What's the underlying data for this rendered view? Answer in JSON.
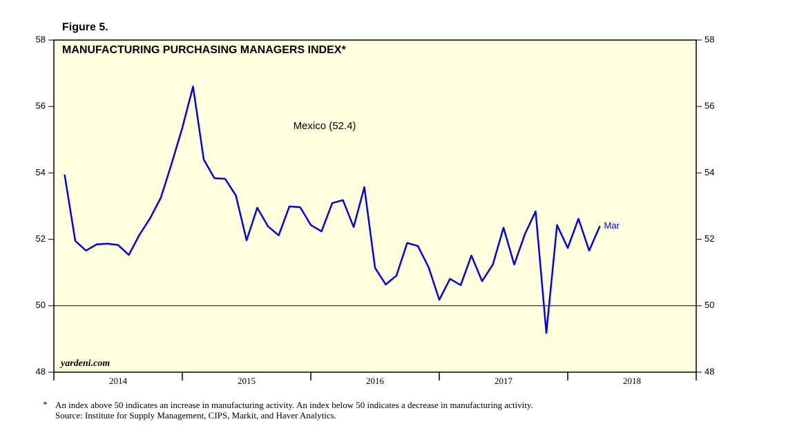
{
  "chart_data": {
    "type": "line",
    "figure_label": "Figure 5.",
    "title": "MANUFACTURING PURCHASING MANAGERS INDEX*",
    "source_mark": "yardeni.com",
    "footnote": "*",
    "footnote_lines": [
      "An index above 50 indicates an increase in manufacturing activity. An index below 50 indicates a decrease in manufacturing activity.",
      "Source: Institute for Supply Management, CIPS, Markit, and Haver Analytics."
    ],
    "x": [
      "2014-01",
      "2014-02",
      "2014-03",
      "2014-04",
      "2014-05",
      "2014-06",
      "2014-07",
      "2014-08",
      "2014-09",
      "2014-10",
      "2014-11",
      "2014-12",
      "2015-01",
      "2015-02",
      "2015-03",
      "2015-04",
      "2015-05",
      "2015-06",
      "2015-07",
      "2015-08",
      "2015-09",
      "2015-10",
      "2015-11",
      "2015-12",
      "2016-01",
      "2016-02",
      "2016-03",
      "2016-04",
      "2016-05",
      "2016-06",
      "2016-07",
      "2016-08",
      "2016-09",
      "2016-10",
      "2016-11",
      "2016-12",
      "2017-01",
      "2017-02",
      "2017-03",
      "2017-04",
      "2017-05",
      "2017-06",
      "2017-07",
      "2017-08",
      "2017-09",
      "2017-10",
      "2017-11",
      "2017-12",
      "2018-01",
      "2018-02",
      "2018-03"
    ],
    "series": [
      {
        "name": "Mexico (52.4)",
        "color": "#0000ee",
        "end_label": "Mar",
        "values": [
          53.95,
          51.95,
          51.66,
          51.85,
          51.87,
          51.83,
          51.53,
          52.14,
          52.64,
          53.26,
          54.28,
          55.36,
          56.6,
          54.4,
          53.84,
          53.82,
          53.32,
          51.97,
          52.95,
          52.39,
          52.12,
          52.99,
          52.97,
          52.43,
          52.24,
          53.09,
          53.18,
          52.37,
          53.57,
          51.14,
          50.64,
          50.91,
          51.89,
          51.8,
          51.16,
          50.18,
          50.81,
          50.62,
          51.51,
          50.74,
          51.24,
          52.35,
          51.24,
          52.16,
          52.84,
          49.18,
          52.43,
          51.74,
          52.62,
          51.66,
          52.4
        ]
      }
    ],
    "xlim": [
      2014,
      2019
    ],
    "xticks": [
      2014,
      2015,
      2016,
      2017,
      2018,
      2019
    ],
    "year_labels": [
      "2014",
      "2015",
      "2016",
      "2017",
      "2018"
    ],
    "ylim": [
      48,
      58
    ],
    "yticks": [
      48,
      50,
      52,
      54,
      56,
      58
    ],
    "reference_line": 50,
    "plot_background": "#ffffdd"
  }
}
